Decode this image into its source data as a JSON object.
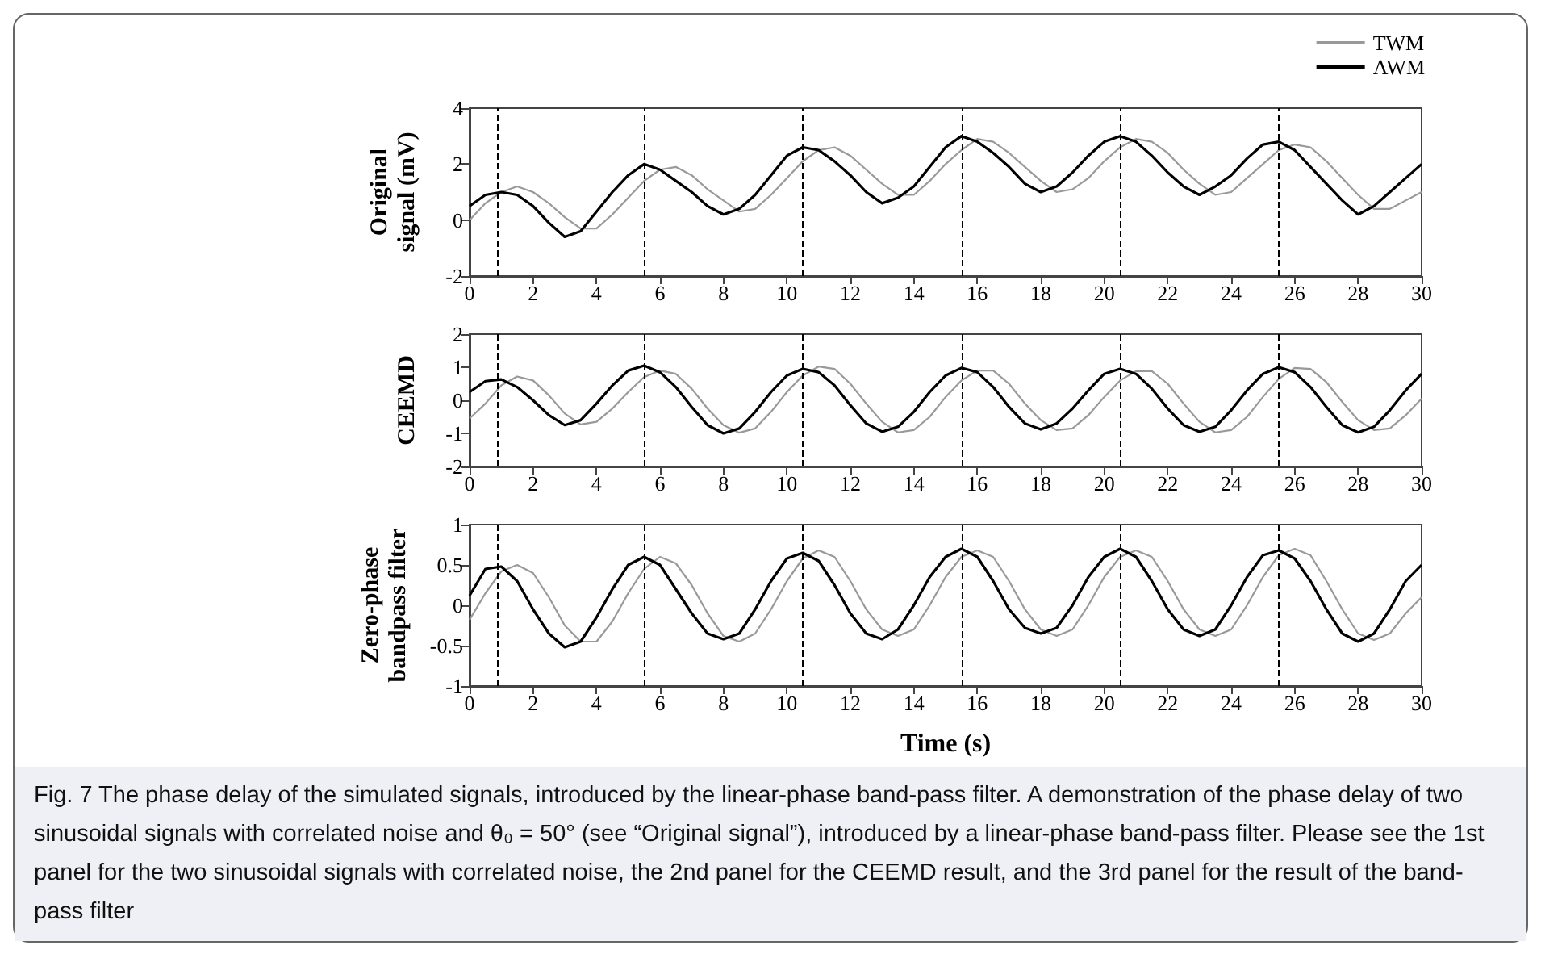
{
  "chart_data": [
    {
      "type": "line",
      "ylabel": "Original signal (mV)",
      "legend": "top right",
      "grid": false,
      "marker": "none",
      "line_style": "solid",
      "xlim": [
        0,
        30
      ],
      "xticks": [
        0,
        2,
        4,
        6,
        8,
        10,
        12,
        14,
        16,
        18,
        20,
        22,
        24,
        26,
        28,
        30
      ],
      "ylim": [
        -2,
        4
      ],
      "yticks": [
        -2,
        0,
        2,
        4
      ],
      "x": [
        0,
        0.5,
        1,
        1.5,
        2,
        2.5,
        3,
        3.5,
        4,
        4.5,
        5,
        5.5,
        6,
        6.5,
        7,
        7.5,
        8,
        8.5,
        9,
        9.5,
        10,
        10.5,
        11,
        11.5,
        12,
        12.5,
        13,
        13.5,
        14,
        14.5,
        15,
        15.5,
        16,
        16.5,
        17,
        17.5,
        18,
        18.5,
        19,
        19.5,
        20,
        20.5,
        21,
        21.5,
        22,
        22.5,
        23,
        23.5,
        24,
        24.5,
        25,
        25.5,
        26,
        26.5,
        27,
        27.5,
        28,
        28.5,
        29,
        29.5,
        30
      ],
      "series": [
        {
          "name": "TWM",
          "color": "#999999",
          "values": [
            0.0,
            0.6,
            1.0,
            1.2,
            1.0,
            0.6,
            0.1,
            -0.3,
            -0.3,
            0.2,
            0.8,
            1.4,
            1.8,
            1.9,
            1.6,
            1.1,
            0.7,
            0.3,
            0.4,
            0.9,
            1.5,
            2.1,
            2.5,
            2.6,
            2.3,
            1.8,
            1.3,
            0.9,
            0.9,
            1.4,
            2.0,
            2.5,
            2.9,
            2.8,
            2.4,
            1.9,
            1.4,
            1.0,
            1.1,
            1.5,
            2.1,
            2.6,
            2.9,
            2.8,
            2.4,
            1.8,
            1.3,
            0.9,
            1.0,
            1.5,
            2.0,
            2.5,
            2.7,
            2.6,
            2.1,
            1.5,
            0.9,
            0.4,
            0.4,
            0.7,
            1.0
          ]
        },
        {
          "name": "AWM",
          "color": "#000000",
          "values": [
            0.5,
            0.9,
            1.0,
            0.9,
            0.5,
            -0.1,
            -0.6,
            -0.4,
            0.3,
            1.0,
            1.6,
            2.0,
            1.8,
            1.4,
            1.0,
            0.5,
            0.2,
            0.4,
            0.9,
            1.6,
            2.3,
            2.6,
            2.5,
            2.1,
            1.6,
            1.0,
            0.6,
            0.8,
            1.2,
            1.9,
            2.6,
            3.0,
            2.8,
            2.4,
            1.9,
            1.3,
            1.0,
            1.2,
            1.7,
            2.3,
            2.8,
            3.0,
            2.8,
            2.3,
            1.7,
            1.2,
            0.9,
            1.2,
            1.6,
            2.2,
            2.7,
            2.8,
            2.5,
            1.9,
            1.3,
            0.7,
            0.2,
            0.5,
            1.0,
            1.5,
            2.0
          ]
        }
      ],
      "ref_lines": [
        {
          "axis": "x",
          "value": 0.9,
          "line_style": "dashed",
          "color": "#000000"
        },
        {
          "axis": "x",
          "value": 5.5,
          "line_style": "dashed",
          "color": "#000000"
        },
        {
          "axis": "x",
          "value": 10.5,
          "line_style": "dashed",
          "color": "#000000"
        },
        {
          "axis": "x",
          "value": 15.5,
          "line_style": "dashed",
          "color": "#000000"
        },
        {
          "axis": "x",
          "value": 20.5,
          "line_style": "dashed",
          "color": "#000000"
        },
        {
          "axis": "x",
          "value": 25.5,
          "line_style": "dashed",
          "color": "#000000"
        }
      ]
    },
    {
      "type": "line",
      "ylabel": "CEEMD",
      "grid": false,
      "marker": "none",
      "line_style": "solid",
      "xlim": [
        0,
        30
      ],
      "xticks": [
        0,
        2,
        4,
        6,
        8,
        10,
        12,
        14,
        16,
        18,
        20,
        22,
        24,
        26,
        28,
        30
      ],
      "ylim": [
        -2,
        2
      ],
      "yticks": [
        -2,
        -1,
        0,
        1,
        2
      ],
      "x": [
        0,
        0.5,
        1,
        1.5,
        2,
        2.5,
        3,
        3.5,
        4,
        4.5,
        5,
        5.5,
        6,
        6.5,
        7,
        7.5,
        8,
        8.5,
        9,
        9.5,
        10,
        10.5,
        11,
        11.5,
        12,
        12.5,
        13,
        13.5,
        14,
        14.5,
        15,
        15.5,
        16,
        16.5,
        17,
        17.5,
        18,
        18.5,
        19,
        19.5,
        20,
        20.5,
        21,
        21.5,
        22,
        22.5,
        23,
        23.5,
        24,
        24.5,
        25,
        25.5,
        26,
        26.5,
        27,
        27.5,
        28,
        28.5,
        29,
        29.5,
        30
      ],
      "series": [
        {
          "color": "#999999",
          "values": [
            -0.55,
            -0.1,
            0.45,
            0.72,
            0.6,
            0.15,
            -0.4,
            -0.73,
            -0.65,
            -0.25,
            0.25,
            0.7,
            0.9,
            0.8,
            0.35,
            -0.25,
            -0.75,
            -0.98,
            -0.85,
            -0.35,
            0.25,
            0.75,
            1.02,
            0.95,
            0.5,
            -0.1,
            -0.65,
            -0.97,
            -0.9,
            -0.5,
            0.1,
            0.6,
            0.9,
            0.9,
            0.5,
            -0.1,
            -0.6,
            -0.9,
            -0.85,
            -0.45,
            0.1,
            0.6,
            0.88,
            0.88,
            0.5,
            -0.1,
            -0.65,
            -0.97,
            -0.9,
            -0.5,
            0.1,
            0.65,
            0.98,
            0.95,
            0.55,
            -0.05,
            -0.6,
            -0.9,
            -0.85,
            -0.45,
            0.05
          ]
        },
        {
          "color": "#000000",
          "values": [
            0.25,
            0.58,
            0.63,
            0.4,
            0.0,
            -0.45,
            -0.75,
            -0.6,
            -0.1,
            0.45,
            0.9,
            1.05,
            0.85,
            0.4,
            -0.2,
            -0.75,
            -1.0,
            -0.85,
            -0.35,
            0.25,
            0.75,
            0.95,
            0.85,
            0.45,
            -0.15,
            -0.7,
            -0.95,
            -0.8,
            -0.35,
            0.25,
            0.75,
            0.98,
            0.85,
            0.4,
            -0.2,
            -0.7,
            -0.88,
            -0.7,
            -0.25,
            0.3,
            0.8,
            0.95,
            0.8,
            0.35,
            -0.25,
            -0.75,
            -0.95,
            -0.8,
            -0.3,
            0.3,
            0.8,
            1.0,
            0.85,
            0.4,
            -0.2,
            -0.75,
            -0.97,
            -0.8,
            -0.3,
            0.3,
            0.8
          ]
        }
      ],
      "ref_lines": [
        {
          "axis": "x",
          "value": 0.9,
          "line_style": "dashed",
          "color": "#000000"
        },
        {
          "axis": "x",
          "value": 5.5,
          "line_style": "dashed",
          "color": "#000000"
        },
        {
          "axis": "x",
          "value": 10.5,
          "line_style": "dashed",
          "color": "#000000"
        },
        {
          "axis": "x",
          "value": 15.5,
          "line_style": "dashed",
          "color": "#000000"
        },
        {
          "axis": "x",
          "value": 20.5,
          "line_style": "dashed",
          "color": "#000000"
        },
        {
          "axis": "x",
          "value": 25.5,
          "line_style": "dashed",
          "color": "#000000"
        }
      ]
    },
    {
      "type": "line",
      "xlabel": "Time (s)",
      "ylabel": "Zero-phase bandpass filter",
      "grid": false,
      "marker": "none",
      "line_style": "solid",
      "xlim": [
        0,
        30
      ],
      "xticks": [
        0,
        2,
        4,
        6,
        8,
        10,
        12,
        14,
        16,
        18,
        20,
        22,
        24,
        26,
        28,
        30
      ],
      "ylim": [
        -1,
        1
      ],
      "yticks": [
        -1,
        -0.5,
        0,
        0.5,
        1
      ],
      "x": [
        0,
        0.5,
        1,
        1.5,
        2,
        2.5,
        3,
        3.5,
        4,
        4.5,
        5,
        5.5,
        6,
        6.5,
        7,
        7.5,
        8,
        8.5,
        9,
        9.5,
        10,
        10.5,
        11,
        11.5,
        12,
        12.5,
        13,
        13.5,
        14,
        14.5,
        15,
        15.5,
        16,
        16.5,
        17,
        17.5,
        18,
        18.5,
        19,
        19.5,
        20,
        20.5,
        21,
        21.5,
        22,
        22.5,
        23,
        23.5,
        24,
        24.5,
        25,
        25.5,
        26,
        26.5,
        27,
        27.5,
        28,
        28.5,
        29,
        29.5,
        30
      ],
      "series": [
        {
          "color": "#999999",
          "values": [
            -0.18,
            0.15,
            0.42,
            0.5,
            0.4,
            0.1,
            -0.25,
            -0.45,
            -0.45,
            -0.2,
            0.15,
            0.45,
            0.6,
            0.52,
            0.25,
            -0.1,
            -0.38,
            -0.45,
            -0.35,
            -0.05,
            0.3,
            0.58,
            0.68,
            0.6,
            0.3,
            -0.05,
            -0.3,
            -0.38,
            -0.3,
            0.0,
            0.35,
            0.6,
            0.68,
            0.6,
            0.3,
            -0.05,
            -0.3,
            -0.38,
            -0.3,
            0.0,
            0.35,
            0.6,
            0.68,
            0.6,
            0.3,
            -0.05,
            -0.3,
            -0.38,
            -0.3,
            0.0,
            0.35,
            0.62,
            0.7,
            0.62,
            0.3,
            -0.05,
            -0.35,
            -0.43,
            -0.35,
            -0.1,
            0.1
          ]
        },
        {
          "color": "#000000",
          "values": [
            0.12,
            0.45,
            0.48,
            0.3,
            -0.05,
            -0.35,
            -0.52,
            -0.45,
            -0.15,
            0.2,
            0.5,
            0.6,
            0.5,
            0.2,
            -0.1,
            -0.35,
            -0.42,
            -0.35,
            -0.05,
            0.3,
            0.58,
            0.65,
            0.55,
            0.25,
            -0.1,
            -0.35,
            -0.42,
            -0.3,
            0.0,
            0.35,
            0.6,
            0.7,
            0.6,
            0.3,
            -0.05,
            -0.28,
            -0.35,
            -0.28,
            0.0,
            0.35,
            0.6,
            0.7,
            0.6,
            0.3,
            -0.05,
            -0.3,
            -0.38,
            -0.3,
            0.0,
            0.35,
            0.62,
            0.68,
            0.58,
            0.3,
            -0.05,
            -0.35,
            -0.45,
            -0.35,
            -0.05,
            0.3,
            0.5
          ]
        }
      ],
      "ref_lines": [
        {
          "axis": "x",
          "value": 0.9,
          "line_style": "dashed",
          "color": "#000000"
        },
        {
          "axis": "x",
          "value": 5.5,
          "line_style": "dashed",
          "color": "#000000"
        },
        {
          "axis": "x",
          "value": 10.5,
          "line_style": "dashed",
          "color": "#000000"
        },
        {
          "axis": "x",
          "value": 15.5,
          "line_style": "dashed",
          "color": "#000000"
        },
        {
          "axis": "x",
          "value": 20.5,
          "line_style": "dashed",
          "color": "#000000"
        },
        {
          "axis": "x",
          "value": 25.5,
          "line_style": "dashed",
          "color": "#000000"
        }
      ],
      "annotations": [
        "Fig. 7 The phase delay of the simulated signals, introduced by the linear-phase band-pass filter. A demonstration of the phase delay of two sinusoidal signals with correlated noise and θ₀ = 50° (see “Original signal”), introduced by a linear-phase band-pass filter. Please see the 1st panel for the two sinusoidal signals with correlated noise, the 2nd panel for the CEEMD result, and the 3rd panel for the result of the band-pass filter"
      ]
    }
  ]
}
